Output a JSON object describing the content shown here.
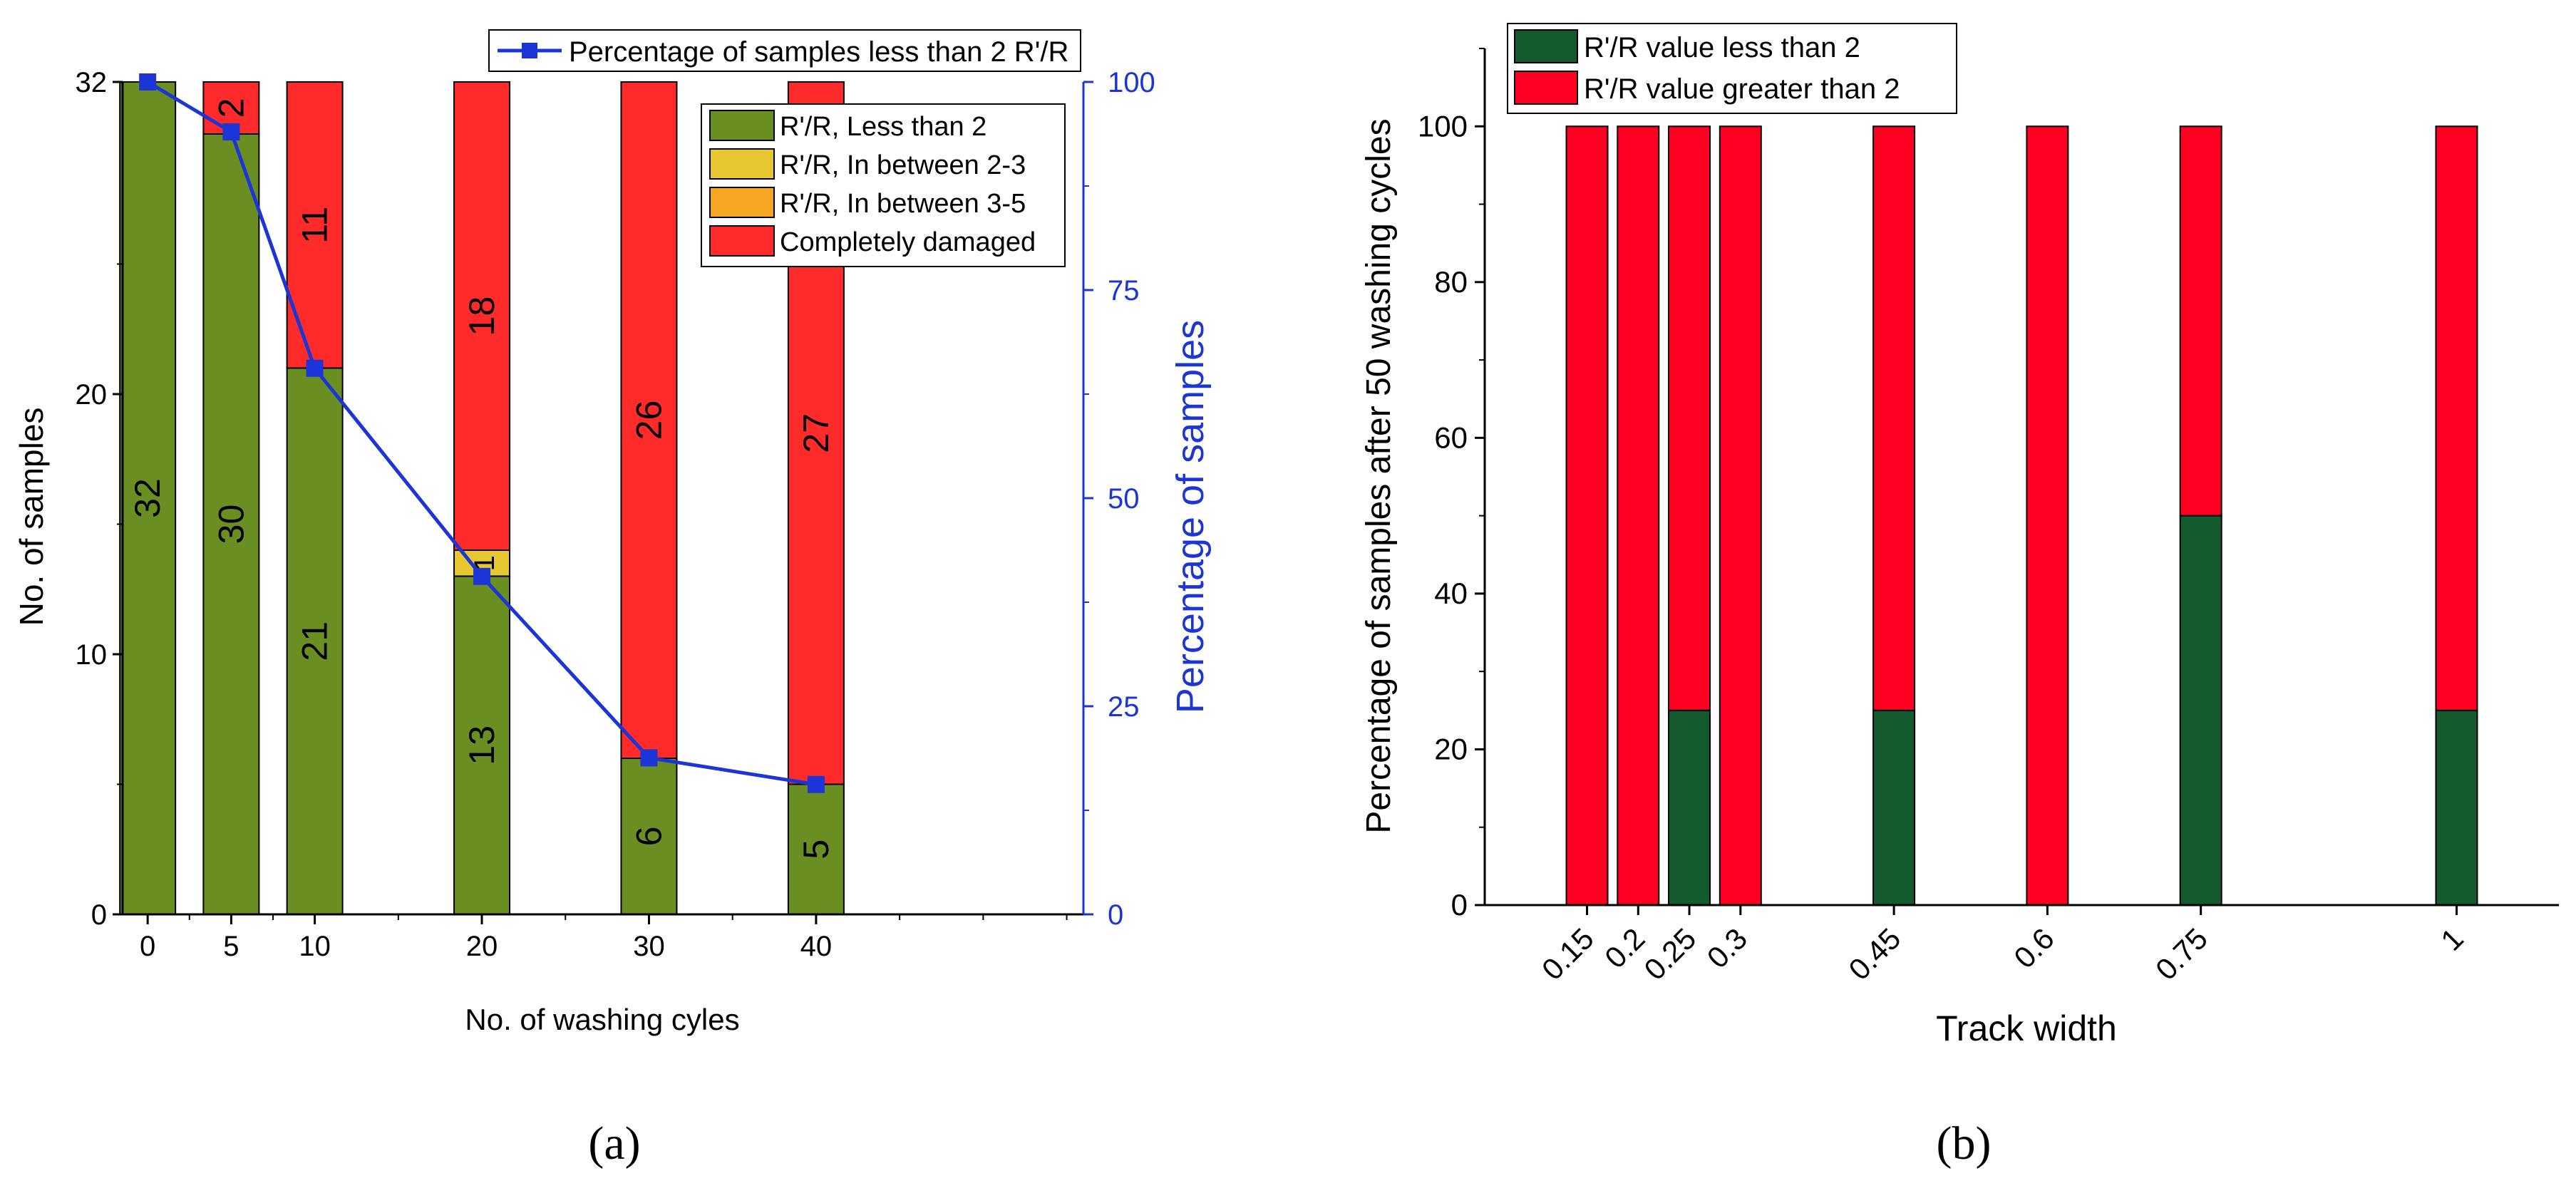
{
  "colors": {
    "less2": "#6B8E23",
    "between23": "#E8C832",
    "between35": "#F5A623",
    "damaged": "#FF2A2A",
    "line": "#1C35D6",
    "b_less2": "#155A2F",
    "b_greater2": "#FF0022"
  },
  "chart_data": [
    {
      "id": "a",
      "type": "bar",
      "stacked": true,
      "caption": "(a)",
      "xlabel": "No. of washing cyles",
      "ylabel": "No. of samples",
      "ylabel_right": "Percentage of samples",
      "categories": [
        "0",
        "5",
        "10",
        "20",
        "30",
        "40"
      ],
      "x": [
        0,
        5,
        10,
        20,
        30,
        40
      ],
      "xlim": [
        -1.5,
        56
      ],
      "xticks": [
        "0",
        "5",
        "10",
        "20",
        "30",
        "40"
      ],
      "ylim": [
        0,
        32
      ],
      "yticks": [
        "0",
        "10",
        "20",
        "32"
      ],
      "ytick_values": [
        0,
        10,
        20,
        32
      ],
      "y2lim": [
        0,
        100
      ],
      "y2ticks": [
        "0",
        "25",
        "50",
        "75",
        "100"
      ],
      "series": [
        {
          "name": "R'/R, Less than 2",
          "values": [
            32,
            30,
            21,
            13,
            6,
            5
          ],
          "labels": [
            "32",
            "30",
            "21",
            "13",
            "6",
            "5"
          ]
        },
        {
          "name": "R'/R, In between 2-3",
          "values": [
            0,
            0,
            0,
            1,
            0,
            0
          ],
          "labels": [
            "",
            "",
            "",
            "1",
            "",
            ""
          ]
        },
        {
          "name": "R'/R, In between 3-5",
          "values": [
            0,
            0,
            0,
            0,
            0,
            0
          ],
          "labels": [
            "",
            "",
            "",
            "",
            "",
            ""
          ]
        },
        {
          "name": "Completely damaged",
          "values": [
            0,
            2,
            11,
            18,
            26,
            27
          ],
          "labels": [
            "",
            "2",
            "11",
            "18",
            "26",
            "27"
          ]
        }
      ],
      "line_series": {
        "name": "Percentage of samples less than 2 R'/R",
        "axis": "right",
        "x": [
          0,
          5,
          10,
          20,
          30,
          40
        ],
        "values": [
          100,
          94,
          65.6,
          40.6,
          18.8,
          15.6
        ]
      }
    },
    {
      "id": "b",
      "type": "bar",
      "stacked": true,
      "caption": "(b)",
      "xlabel": "Track width",
      "ylabel": "Percentage of samples after 50 washing cycles",
      "categories": [
        "0.15",
        "0.2",
        "0.25",
        "0.3",
        "0.45",
        "0.6",
        "0.75",
        "1"
      ],
      "x": [
        0.15,
        0.2,
        0.25,
        0.3,
        0.45,
        0.6,
        0.75,
        1
      ],
      "xlim": [
        0.05,
        1.1
      ],
      "ylim": [
        0,
        110
      ],
      "yticks": [
        "0",
        "20",
        "40",
        "60",
        "80",
        "100"
      ],
      "series": [
        {
          "name": "R'/R value less than 2",
          "values": [
            0,
            0,
            25,
            0,
            25,
            0,
            50,
            25
          ]
        },
        {
          "name": "R'/R value greater than 2",
          "values": [
            100,
            100,
            75,
            100,
            75,
            100,
            50,
            75
          ]
        }
      ]
    }
  ]
}
